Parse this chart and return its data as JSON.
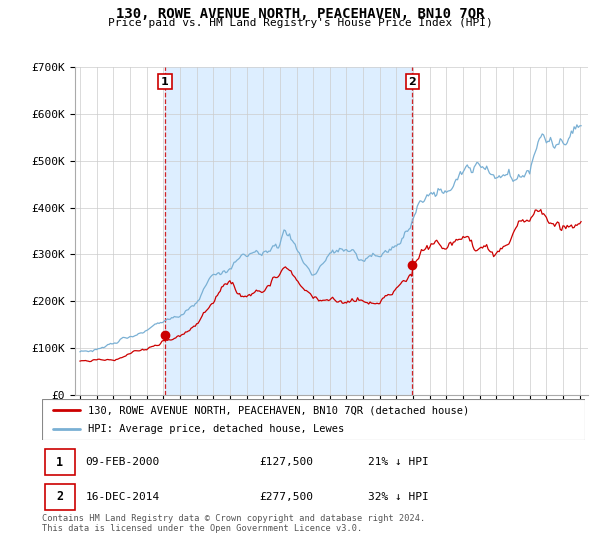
{
  "title": "130, ROWE AVENUE NORTH, PEACEHAVEN, BN10 7QR",
  "subtitle": "Price paid vs. HM Land Registry's House Price Index (HPI)",
  "ylabel_ticks": [
    "£0",
    "£100K",
    "£200K",
    "£300K",
    "£400K",
    "£500K",
    "£600K",
    "£700K"
  ],
  "ylim": [
    0,
    700000
  ],
  "xlim_start": 1994.7,
  "xlim_end": 2025.5,
  "marker1_x": 2000.1,
  "marker1_y": 127500,
  "marker2_x": 2014.96,
  "marker2_y": 277500,
  "red_line_color": "#cc0000",
  "blue_line_color": "#7ab0d4",
  "blue_fill_color": "#ddeeff",
  "marker_box_color": "#cc0000",
  "legend_entry1": "130, ROWE AVENUE NORTH, PEACEHAVEN, BN10 7QR (detached house)",
  "legend_entry2": "HPI: Average price, detached house, Lewes",
  "table_row1": [
    "1",
    "09-FEB-2000",
    "£127,500",
    "21% ↓ HPI"
  ],
  "table_row2": [
    "2",
    "16-DEC-2014",
    "£277,500",
    "32% ↓ HPI"
  ],
  "footnote": "Contains HM Land Registry data © Crown copyright and database right 2024.\nThis data is licensed under the Open Government Licence v3.0.",
  "background_color": "#ffffff",
  "grid_color": "#cccccc"
}
